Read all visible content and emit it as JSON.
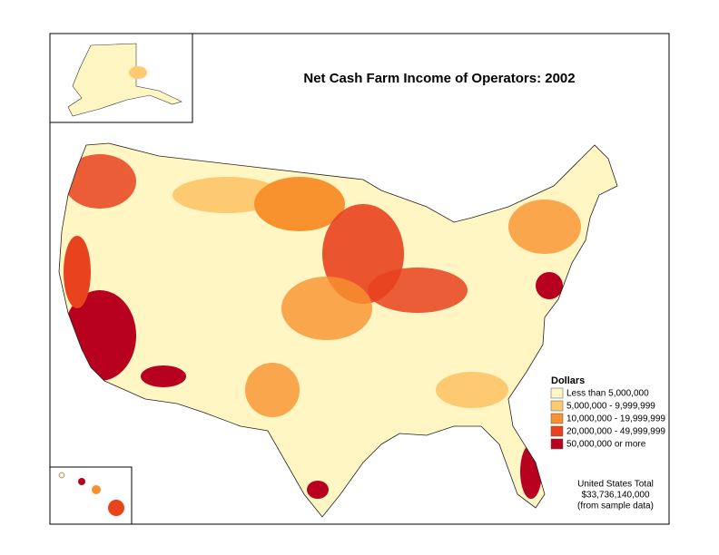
{
  "title": "Net Cash Farm Income of Operators:  2002",
  "legend": {
    "title": "Dollars",
    "items": [
      {
        "label": "Less than 5,000,000",
        "color": "#fff6c4"
      },
      {
        "label": "5,000,000 - 9,999,999",
        "color": "#fdca72"
      },
      {
        "label": "10,000,000 - 19,999,999",
        "color": "#f7922f"
      },
      {
        "label": "20,000,000 - 49,999,999",
        "color": "#e8421e"
      },
      {
        "label": "50,000,000 or more",
        "color": "#b8001f"
      }
    ]
  },
  "note": {
    "line1": "United States Total",
    "line2": "$33,736,140,000",
    "line3": "(from sample data)"
  }
}
